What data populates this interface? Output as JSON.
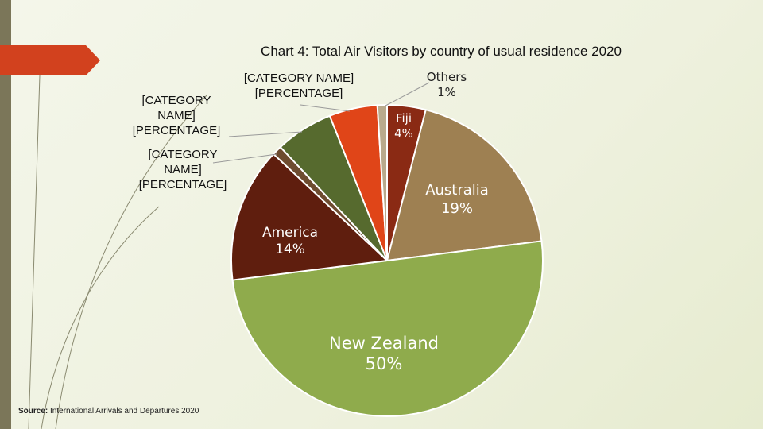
{
  "chart_data": {
    "type": "pie",
    "title": "Chart 4:  Total Air Visitors by country of usual residence 2020",
    "categories": [
      "Fiji",
      "Australia",
      "New Zealand",
      "America",
      "[CATEGORY NAME]",
      "[CATEGORY NAME]",
      "[CATEGORY NAME]",
      "Others"
    ],
    "values": [
      4,
      19,
      50,
      14,
      1,
      6,
      5,
      1
    ],
    "value_labels": [
      "4%",
      "19%",
      "50%",
      "14%",
      "[PERCENTAGE]",
      "[PERCENTAGE]",
      "[PERCENTAGE]",
      "1%"
    ],
    "colors": [
      "#8a2a14",
      "#9e8052",
      "#8fab4c",
      "#5f1e0e",
      "#6e4c30",
      "#566a2e",
      "#e04518",
      "#b9aa8c"
    ],
    "source": {
      "label": "Source:",
      "text": "International Arrivals and Departures 2020"
    }
  }
}
